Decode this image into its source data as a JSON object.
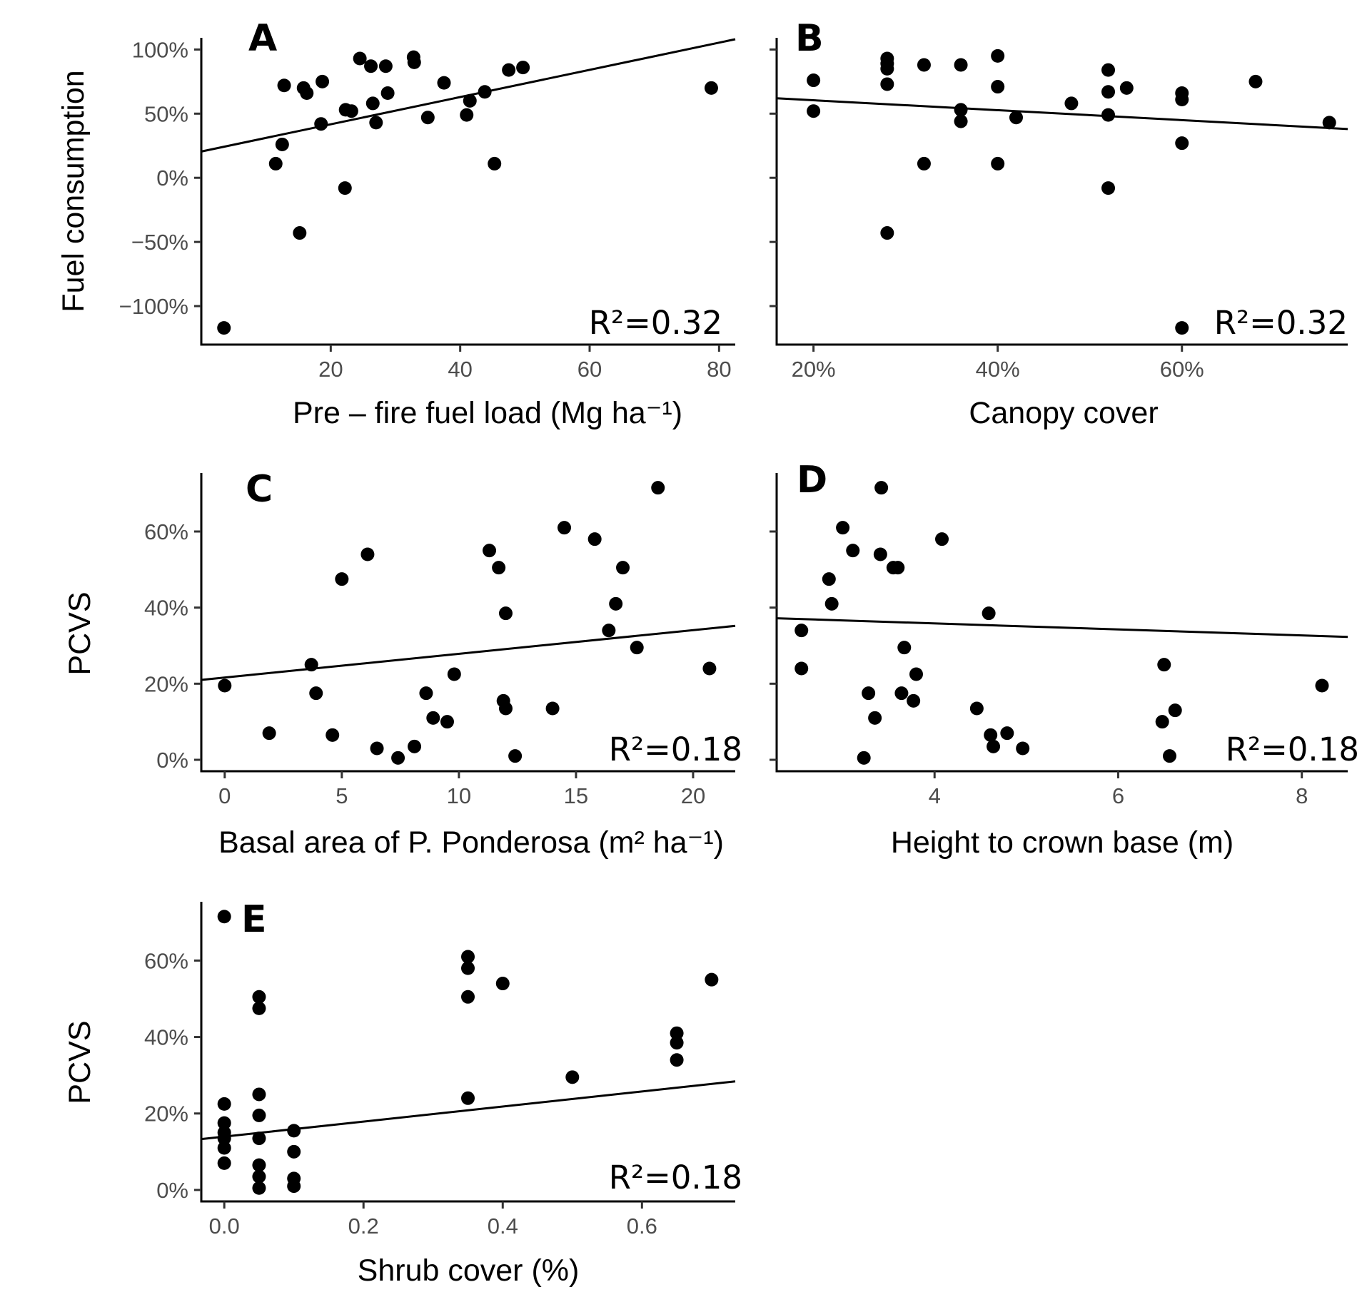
{
  "chart_data": [
    {
      "id": "A",
      "type": "scatter",
      "panel_label": "A",
      "xlabel": "Pre – fire fuel load (Mg ha⁻¹)",
      "ylabel": "Fuel consumption",
      "xlim": [
        0,
        82.5
      ],
      "ylim": [
        -130,
        108
      ],
      "x_ticks": [
        20,
        40,
        60,
        80
      ],
      "x_tick_labels": [
        "20",
        "40",
        "60",
        "80"
      ],
      "y_ticks": [
        -100,
        -50,
        0,
        50,
        100
      ],
      "y_tick_labels": [
        "−100%",
        "−50%",
        "0%",
        "50%",
        "100%"
      ],
      "show_y_tick_labels": true,
      "r2_text": "R²=0.32",
      "fit_line": {
        "x": [
          0,
          82.5
        ],
        "y": [
          20.5,
          108
        ]
      },
      "points": {
        "x": [
          3.5,
          11.5,
          12.5,
          12.8,
          15.2,
          15.8,
          16.3,
          18.5,
          18.7,
          22.2,
          22.3,
          23.2,
          24.5,
          26.2,
          26.5,
          27.0,
          28.5,
          28.8,
          32.8,
          32.9,
          35.0,
          37.5,
          41.0,
          41.5,
          43.8,
          45.3,
          47.5,
          49.7,
          78.8
        ],
        "y": [
          -117,
          11,
          26,
          72,
          -43,
          70,
          66,
          42,
          75,
          -8,
          53,
          52,
          93,
          87,
          58,
          43,
          87,
          66,
          94,
          90,
          47,
          74,
          49,
          60,
          67,
          11,
          84,
          86,
          70
        ]
      }
    },
    {
      "id": "B",
      "type": "scatter",
      "panel_label": "B",
      "xlabel": "Canopy cover",
      "ylabel": "",
      "xlim": [
        16,
        78
      ],
      "ylim": [
        -130,
        108
      ],
      "x_ticks": [
        20,
        40,
        60
      ],
      "x_tick_labels": [
        "20%",
        "40%",
        "60%"
      ],
      "y_ticks": [
        -100,
        -50,
        0,
        50,
        100
      ],
      "y_tick_labels": [],
      "show_y_tick_labels": false,
      "r2_text": "R²=0.32",
      "fit_line": {
        "x": [
          16,
          78
        ],
        "y": [
          62,
          38
        ]
      },
      "points": {
        "x": [
          20,
          20,
          28,
          28,
          28,
          28,
          28,
          32,
          32,
          36,
          36,
          36,
          40,
          40,
          40,
          42,
          48,
          52,
          52,
          52,
          52,
          54,
          60,
          60,
          60,
          60,
          68,
          76
        ],
        "y": [
          76,
          52,
          93,
          89,
          73,
          -43,
          85,
          88,
          11,
          88,
          53,
          44,
          95,
          71,
          11,
          47,
          58,
          84,
          67,
          49,
          -8,
          70,
          66,
          61,
          27,
          -117,
          75,
          43
        ]
      }
    },
    {
      "id": "C",
      "type": "scatter",
      "panel_label": "C",
      "xlabel": "Basal area of P. Ponderosa (m² ha⁻¹)",
      "ylabel": "PCVS",
      "xlim": [
        -1.0,
        21.8
      ],
      "ylim": [
        -3,
        75
      ],
      "x_ticks": [
        0,
        5,
        10,
        15,
        20
      ],
      "x_tick_labels": [
        "0",
        "5",
        "10",
        "15",
        "20"
      ],
      "y_ticks": [
        0,
        20,
        40,
        60
      ],
      "y_tick_labels": [
        "0%",
        "20%",
        "40%",
        "60%"
      ],
      "show_y_tick_labels": true,
      "r2_text": "R²=0.18",
      "fit_line": {
        "x": [
          -1.0,
          21.8
        ],
        "y": [
          21,
          35.2
        ]
      },
      "points": {
        "x": [
          0.0,
          1.9,
          3.7,
          3.9,
          4.6,
          5.0,
          6.1,
          6.5,
          7.4,
          8.1,
          8.6,
          8.9,
          9.5,
          9.8,
          11.3,
          11.7,
          11.9,
          12.0,
          12.0,
          12.4,
          14.0,
          14.5,
          15.8,
          16.4,
          16.7,
          17.0,
          17.6,
          18.5,
          20.7
        ],
        "y": [
          19.5,
          7,
          25,
          17.5,
          6.5,
          47.5,
          54,
          3,
          0.5,
          3.5,
          17.5,
          11,
          10,
          22.5,
          55,
          50.5,
          15.5,
          38.5,
          13.5,
          1,
          13.5,
          61,
          58,
          34,
          41,
          50.5,
          29.5,
          71.5,
          24
        ]
      }
    },
    {
      "id": "D",
      "type": "scatter",
      "panel_label": "D",
      "xlabel": "Height to crown base (m)",
      "ylabel": "",
      "xlim": [
        2.28,
        8.5
      ],
      "ylim": [
        -3,
        75
      ],
      "x_ticks": [
        4,
        6,
        8
      ],
      "x_tick_labels": [
        "4",
        "6",
        "8"
      ],
      "y_ticks": [
        0,
        20,
        40,
        60
      ],
      "y_tick_labels": [],
      "show_y_tick_labels": false,
      "r2_text": "R²=0.18",
      "fit_line": {
        "x": [
          2.28,
          8.5
        ],
        "y": [
          37.2,
          32.3
        ]
      },
      "points": {
        "x": [
          2.55,
          2.55,
          2.85,
          2.88,
          3.0,
          3.11,
          3.23,
          3.28,
          3.35,
          3.41,
          3.42,
          3.55,
          3.6,
          3.64,
          3.67,
          3.77,
          3.8,
          4.08,
          4.46,
          4.59,
          4.61,
          4.64,
          4.79,
          4.96,
          6.5,
          6.48,
          6.56,
          6.62,
          8.22
        ],
        "y": [
          34,
          24,
          47.5,
          41,
          61,
          55,
          0.5,
          17.5,
          11,
          54,
          71.5,
          50.5,
          50.5,
          17.5,
          29.5,
          15.5,
          22.5,
          58,
          13.5,
          38.5,
          6.5,
          3.5,
          7,
          3,
          25,
          10,
          1,
          13,
          19.5
        ]
      }
    },
    {
      "id": "E",
      "type": "scatter",
      "panel_label": "E",
      "xlabel": "Shrub cover (%)",
      "ylabel": "PCVS",
      "xlim": [
        -0.033,
        0.734
      ],
      "ylim": [
        -3,
        75
      ],
      "x_ticks": [
        0.0,
        0.2,
        0.4,
        0.6
      ],
      "x_tick_labels": [
        "0.0",
        "0.2",
        "0.4",
        "0.6"
      ],
      "y_ticks": [
        0,
        20,
        40,
        60
      ],
      "y_tick_labels": [
        "0%",
        "20%",
        "40%",
        "60%"
      ],
      "show_y_tick_labels": true,
      "r2_text": "R²=0.18",
      "fit_line": {
        "x": [
          -0.033,
          0.734
        ],
        "y": [
          13.3,
          28.4
        ]
      },
      "points": {
        "x": [
          0.0,
          0.0,
          0.0,
          0.0,
          0.0,
          0.0,
          0.0,
          0.05,
          0.05,
          0.05,
          0.05,
          0.05,
          0.05,
          0.05,
          0.05,
          0.1,
          0.1,
          0.1,
          0.1,
          0.35,
          0.35,
          0.35,
          0.35,
          0.4,
          0.5,
          0.65,
          0.65,
          0.65,
          0.7
        ],
        "y": [
          71.5,
          22.5,
          17.5,
          13.5,
          11,
          7,
          15,
          50.5,
          47.5,
          25,
          19.5,
          13.5,
          6.5,
          3.5,
          0.5,
          15.5,
          10,
          3,
          1,
          61,
          58,
          50.5,
          24,
          54,
          29.5,
          41,
          38.5,
          34,
          55
        ]
      }
    }
  ]
}
